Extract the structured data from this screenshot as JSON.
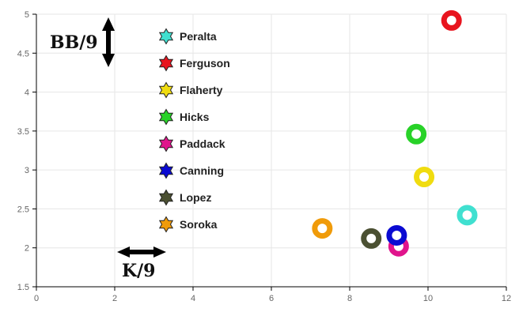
{
  "chart_data": {
    "type": "scatter",
    "xlabel": "K/9",
    "ylabel": "BB/9",
    "xlim": [
      0,
      12
    ],
    "ylim": [
      1.5,
      5
    ],
    "x_ticks": [
      "0",
      "2",
      "4",
      "6",
      "8",
      "10",
      "12"
    ],
    "y_ticks": [
      "1.5",
      "2",
      "2.5",
      "3",
      "3.5",
      "4",
      "4.5",
      "5"
    ],
    "grid": true,
    "legend_position": "top-left",
    "series": [
      {
        "name": "Peralta",
        "color": "#40E0D0",
        "x": 11.0,
        "y": 2.42
      },
      {
        "name": "Ferguson",
        "color": "#E8141E",
        "x": 10.6,
        "y": 4.92
      },
      {
        "name": "Flaherty",
        "color": "#F0DC10",
        "x": 9.9,
        "y": 2.91
      },
      {
        "name": "Hicks",
        "color": "#28D228",
        "x": 9.7,
        "y": 3.46
      },
      {
        "name": "Paddack",
        "color": "#E0148C",
        "x": 9.25,
        "y": 2.02
      },
      {
        "name": "Canning",
        "color": "#0A0AD2",
        "x": 9.2,
        "y": 2.16
      },
      {
        "name": "Lopez",
        "color": "#4B5032",
        "x": 8.55,
        "y": 2.12
      },
      {
        "name": "Soroka",
        "color": "#F09B0A",
        "x": 7.3,
        "y": 2.25
      }
    ]
  }
}
